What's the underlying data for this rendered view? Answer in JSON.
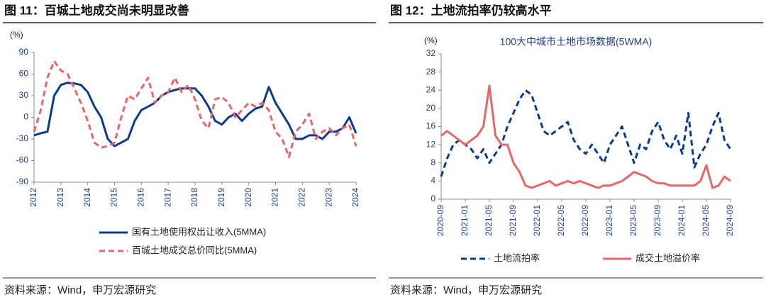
{
  "chart_data": [
    {
      "type": "line",
      "title": "图 11：百城土地成交尚未明显改善",
      "y_label": "(%)",
      "x": [
        2012,
        2012.25,
        2012.5,
        2012.75,
        2013,
        2013.25,
        2013.5,
        2013.75,
        2014,
        2014.25,
        2014.5,
        2014.75,
        2015,
        2015.25,
        2015.5,
        2015.75,
        2016,
        2016.25,
        2016.5,
        2016.75,
        2017,
        2017.25,
        2017.5,
        2017.75,
        2018,
        2018.25,
        2018.5,
        2018.75,
        2019,
        2019.25,
        2019.5,
        2019.75,
        2020,
        2020.25,
        2020.5,
        2020.75,
        2021,
        2021.25,
        2021.5,
        2021.75,
        2022,
        2022.25,
        2022.5,
        2022.75,
        2023,
        2023.25,
        2023.5,
        2023.75,
        2024
      ],
      "xlim": [
        2012,
        2024
      ],
      "xticks": [
        2012,
        2013,
        2014,
        2015,
        2016,
        2017,
        2018,
        2019,
        2020,
        2021,
        2022,
        2023,
        2024
      ],
      "ylim": [
        -90,
        90
      ],
      "yticks": [
        -90,
        -60,
        -30,
        0,
        30,
        60,
        90
      ],
      "series": [
        {
          "name": "国有土地使用权出让收入(5MMA)",
          "color": "#0b3b8c",
          "style": "solid",
          "values": [
            -25,
            -22,
            -20,
            30,
            45,
            48,
            47,
            45,
            35,
            15,
            0,
            -30,
            -40,
            -35,
            -30,
            -5,
            10,
            15,
            20,
            30,
            35,
            38,
            40,
            40,
            40,
            30,
            15,
            -5,
            -10,
            0,
            5,
            -5,
            5,
            12,
            15,
            42,
            20,
            5,
            -10,
            -30,
            -30,
            -25,
            -25,
            -30,
            -20,
            -20,
            -15,
            0,
            -22
          ]
        },
        {
          "name": "百城土地成交总价同比(5MMA)",
          "color": "#e8656a",
          "style": "dashed",
          "values": [
            -20,
            10,
            55,
            78,
            65,
            60,
            40,
            20,
            -5,
            -35,
            -42,
            -40,
            -35,
            0,
            30,
            25,
            40,
            55,
            20,
            30,
            35,
            55,
            35,
            45,
            25,
            -5,
            -15,
            25,
            28,
            20,
            0,
            10,
            20,
            15,
            20,
            10,
            -20,
            -30,
            -55,
            -20,
            -10,
            5,
            -30,
            -20,
            -15,
            -25,
            -15,
            -10,
            -40
          ]
        }
      ],
      "legend": "bottom",
      "source": "资料来源：Wind，申万宏源研究"
    },
    {
      "type": "line",
      "title": "图 12：土地流拍率仍较高水平",
      "subtitle": "100大中城市土地市场数据(5WMA)",
      "y_label": "(%)",
      "categories": [
        "2020-09",
        null,
        null,
        null,
        "2021-01",
        null,
        null,
        null,
        "2021-05",
        null,
        null,
        null,
        "2021-09",
        null,
        null,
        null,
        "2022-01",
        null,
        null,
        null,
        "2022-05",
        null,
        null,
        null,
        "2022-09",
        null,
        null,
        null,
        "2023-01",
        null,
        null,
        null,
        "2023-05",
        null,
        null,
        null,
        "2023-09",
        null,
        null,
        null,
        "2024-01",
        null,
        null,
        null,
        "2024-05",
        null,
        null,
        null,
        "2024-09"
      ],
      "ylim": [
        0,
        32
      ],
      "yticks": [
        0,
        4,
        8,
        12,
        16,
        20,
        24,
        28,
        32
      ],
      "series": [
        {
          "name": "土地流拍率",
          "color": "#0b3b8c",
          "style": "dashed",
          "values": [
            5,
            9,
            12,
            13,
            12,
            11,
            9,
            11,
            8,
            10,
            12,
            16,
            19,
            22,
            24,
            23,
            19,
            15,
            14,
            15,
            16,
            17,
            13,
            11,
            10,
            12,
            10,
            8,
            12,
            14,
            16,
            12,
            8,
            12,
            11,
            15,
            17,
            13,
            11,
            14,
            10,
            19,
            7,
            10,
            12,
            16,
            19,
            13,
            11
          ]
        },
        {
          "name": "成交土地溢价率",
          "color": "#e8656a",
          "style": "solid",
          "values": [
            14,
            15,
            14,
            13,
            12,
            13,
            14,
            16,
            25,
            14,
            12,
            12,
            8,
            6,
            3,
            2.5,
            3,
            3.5,
            4,
            3,
            3.5,
            4,
            3.5,
            4,
            3.5,
            3,
            2.5,
            3,
            3,
            3.5,
            4,
            5,
            6,
            5.5,
            5,
            4,
            3.5,
            3.5,
            3,
            3,
            3,
            3,
            3,
            4,
            7.5,
            2.5,
            3,
            5,
            4
          ]
        }
      ],
      "legend": "bottom",
      "source": "资料来源：Wind，申万宏源研究"
    }
  ]
}
